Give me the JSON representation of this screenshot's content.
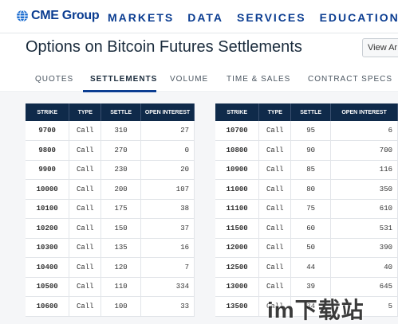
{
  "header": {
    "logo_text": "CME Group",
    "nav": [
      "MARKETS",
      "DATA",
      "SERVICES",
      "EDUCATION"
    ]
  },
  "page": {
    "title": "Options on Bitcoin Futures Settlements",
    "view_button": "View Ar"
  },
  "tabs": [
    {
      "label": "QUOTES",
      "active": false
    },
    {
      "label": "SETTLEMENTS",
      "active": true
    },
    {
      "label": "VOLUME",
      "active": false
    },
    {
      "label": "TIME & SALES",
      "active": false
    },
    {
      "label": "CONTRACT SPECS",
      "active": false
    }
  ],
  "table_headers": [
    "STRIKE",
    "TYPE",
    "SETTLE",
    "OPEN INTEREST"
  ],
  "table_left": [
    {
      "strike": "9700",
      "type": "Call",
      "settle": "310",
      "open_interest": "27"
    },
    {
      "strike": "9800",
      "type": "Call",
      "settle": "270",
      "open_interest": "0"
    },
    {
      "strike": "9900",
      "type": "Call",
      "settle": "230",
      "open_interest": "20"
    },
    {
      "strike": "10000",
      "type": "Call",
      "settle": "200",
      "open_interest": "107"
    },
    {
      "strike": "10100",
      "type": "Call",
      "settle": "175",
      "open_interest": "38"
    },
    {
      "strike": "10200",
      "type": "Call",
      "settle": "150",
      "open_interest": "37"
    },
    {
      "strike": "10300",
      "type": "Call",
      "settle": "135",
      "open_interest": "16"
    },
    {
      "strike": "10400",
      "type": "Call",
      "settle": "120",
      "open_interest": "7"
    },
    {
      "strike": "10500",
      "type": "Call",
      "settle": "110",
      "open_interest": "334"
    },
    {
      "strike": "10600",
      "type": "Call",
      "settle": "100",
      "open_interest": "33"
    }
  ],
  "table_right": [
    {
      "strike": "10700",
      "type": "Call",
      "settle": "95",
      "open_interest": "6"
    },
    {
      "strike": "10800",
      "type": "Call",
      "settle": "90",
      "open_interest": "700"
    },
    {
      "strike": "10900",
      "type": "Call",
      "settle": "85",
      "open_interest": "116"
    },
    {
      "strike": "11000",
      "type": "Call",
      "settle": "80",
      "open_interest": "350"
    },
    {
      "strike": "11100",
      "type": "Call",
      "settle": "75",
      "open_interest": "610"
    },
    {
      "strike": "11500",
      "type": "Call",
      "settle": "60",
      "open_interest": "531"
    },
    {
      "strike": "12000",
      "type": "Call",
      "settle": "50",
      "open_interest": "390"
    },
    {
      "strike": "12500",
      "type": "Call",
      "settle": "44",
      "open_interest": "40"
    },
    {
      "strike": "13000",
      "type": "Call",
      "settle": "39",
      "open_interest": "645"
    },
    {
      "strike": "13500",
      "type": "Call",
      "settle": "34",
      "open_interest": "5"
    }
  ],
  "watermark": "im下载站",
  "colors": {
    "brand": "#0b3d91",
    "table_header": "#0f2a4a"
  }
}
